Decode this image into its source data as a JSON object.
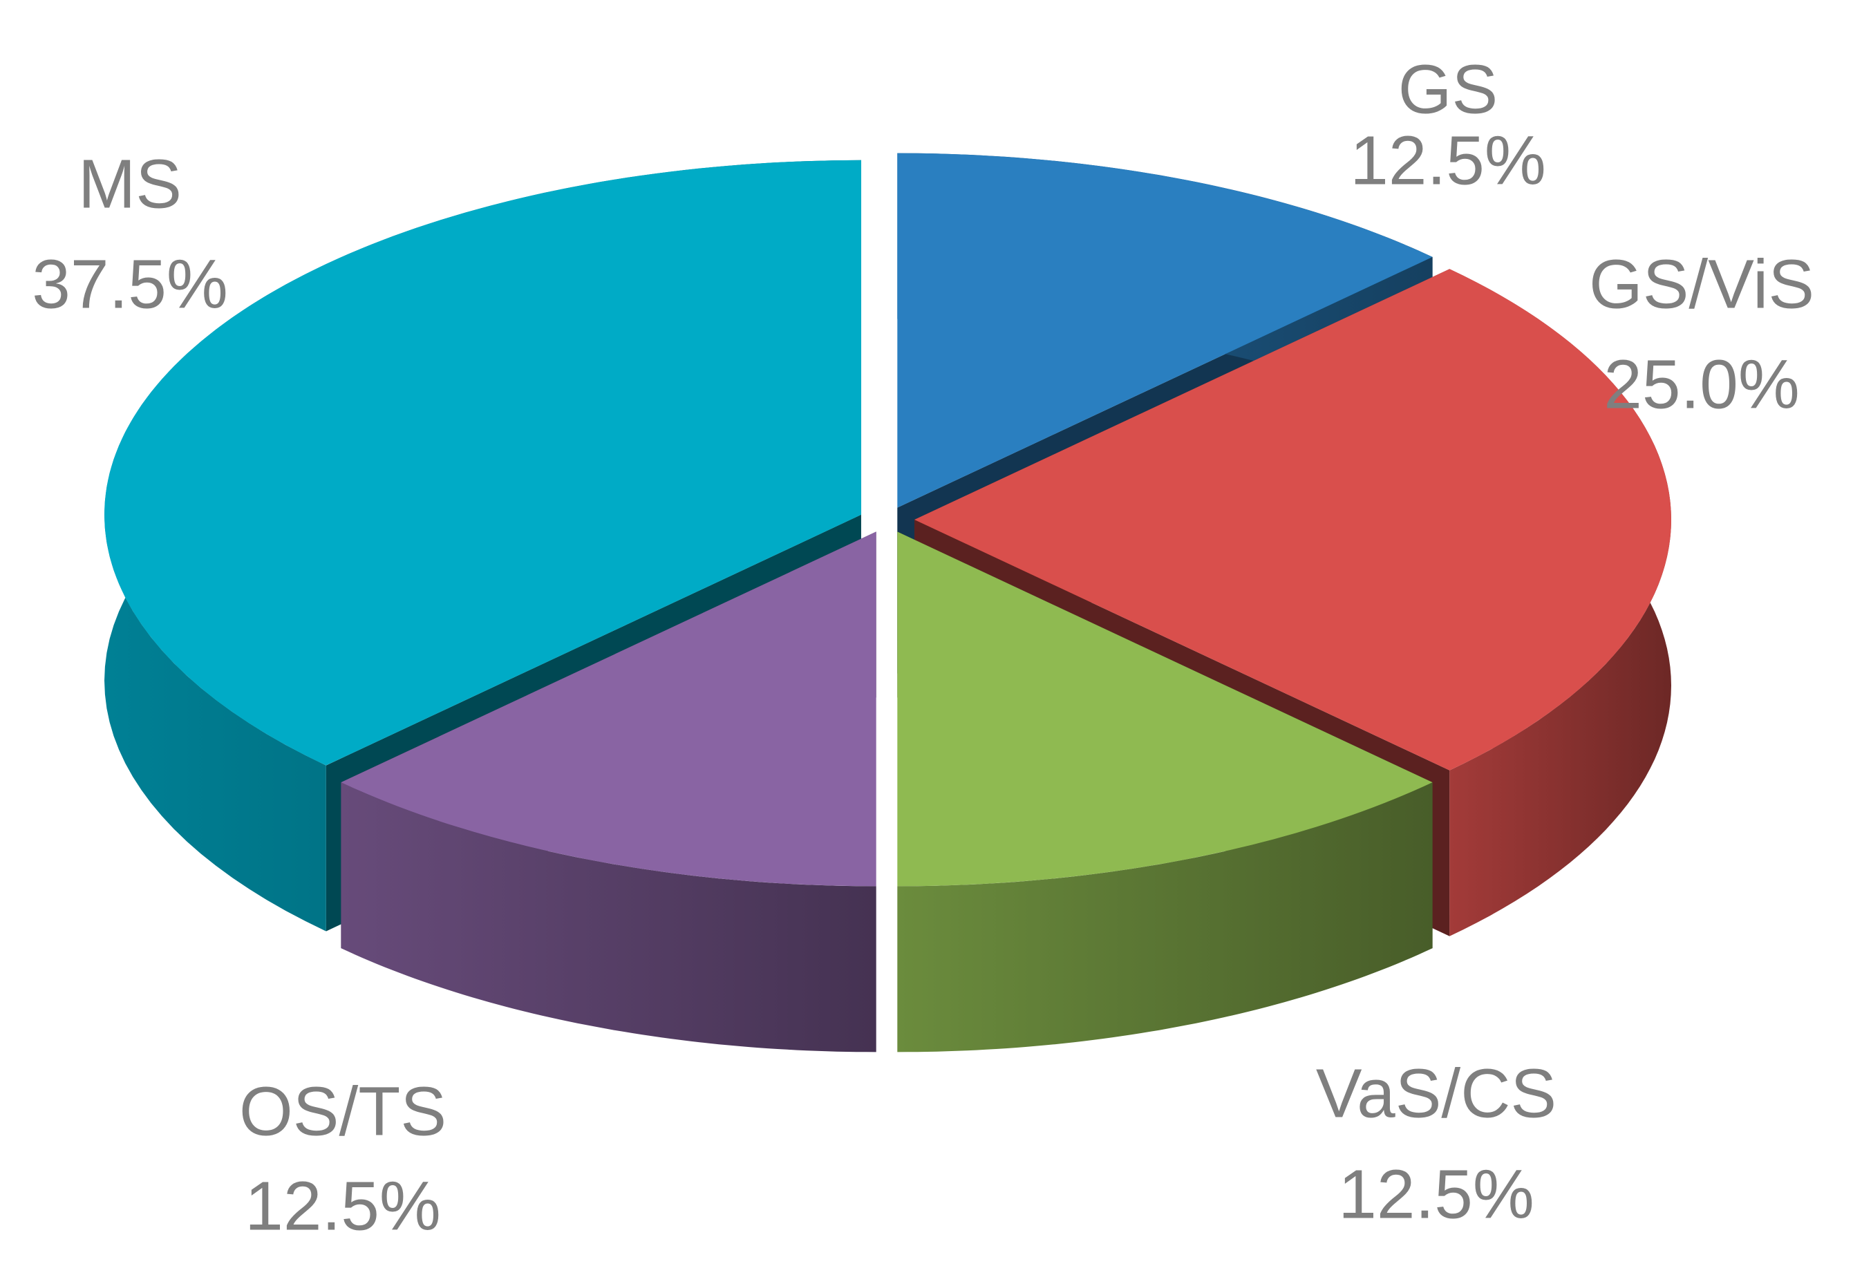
{
  "chart_data": {
    "type": "pie3d",
    "categories": [
      "GS",
      "GS/ViS",
      "VaS/CS",
      "OS/TS",
      "MS"
    ],
    "values": [
      12.5,
      25.0,
      12.5,
      12.5,
      37.5
    ],
    "value_labels": [
      "12.5%",
      "25.0%",
      "12.5%",
      "12.5%",
      "37.5%"
    ],
    "colors": [
      "#2a7fc0",
      "#d94f4c",
      "#8fba51",
      "#8964a3",
      "#00abc6"
    ]
  }
}
